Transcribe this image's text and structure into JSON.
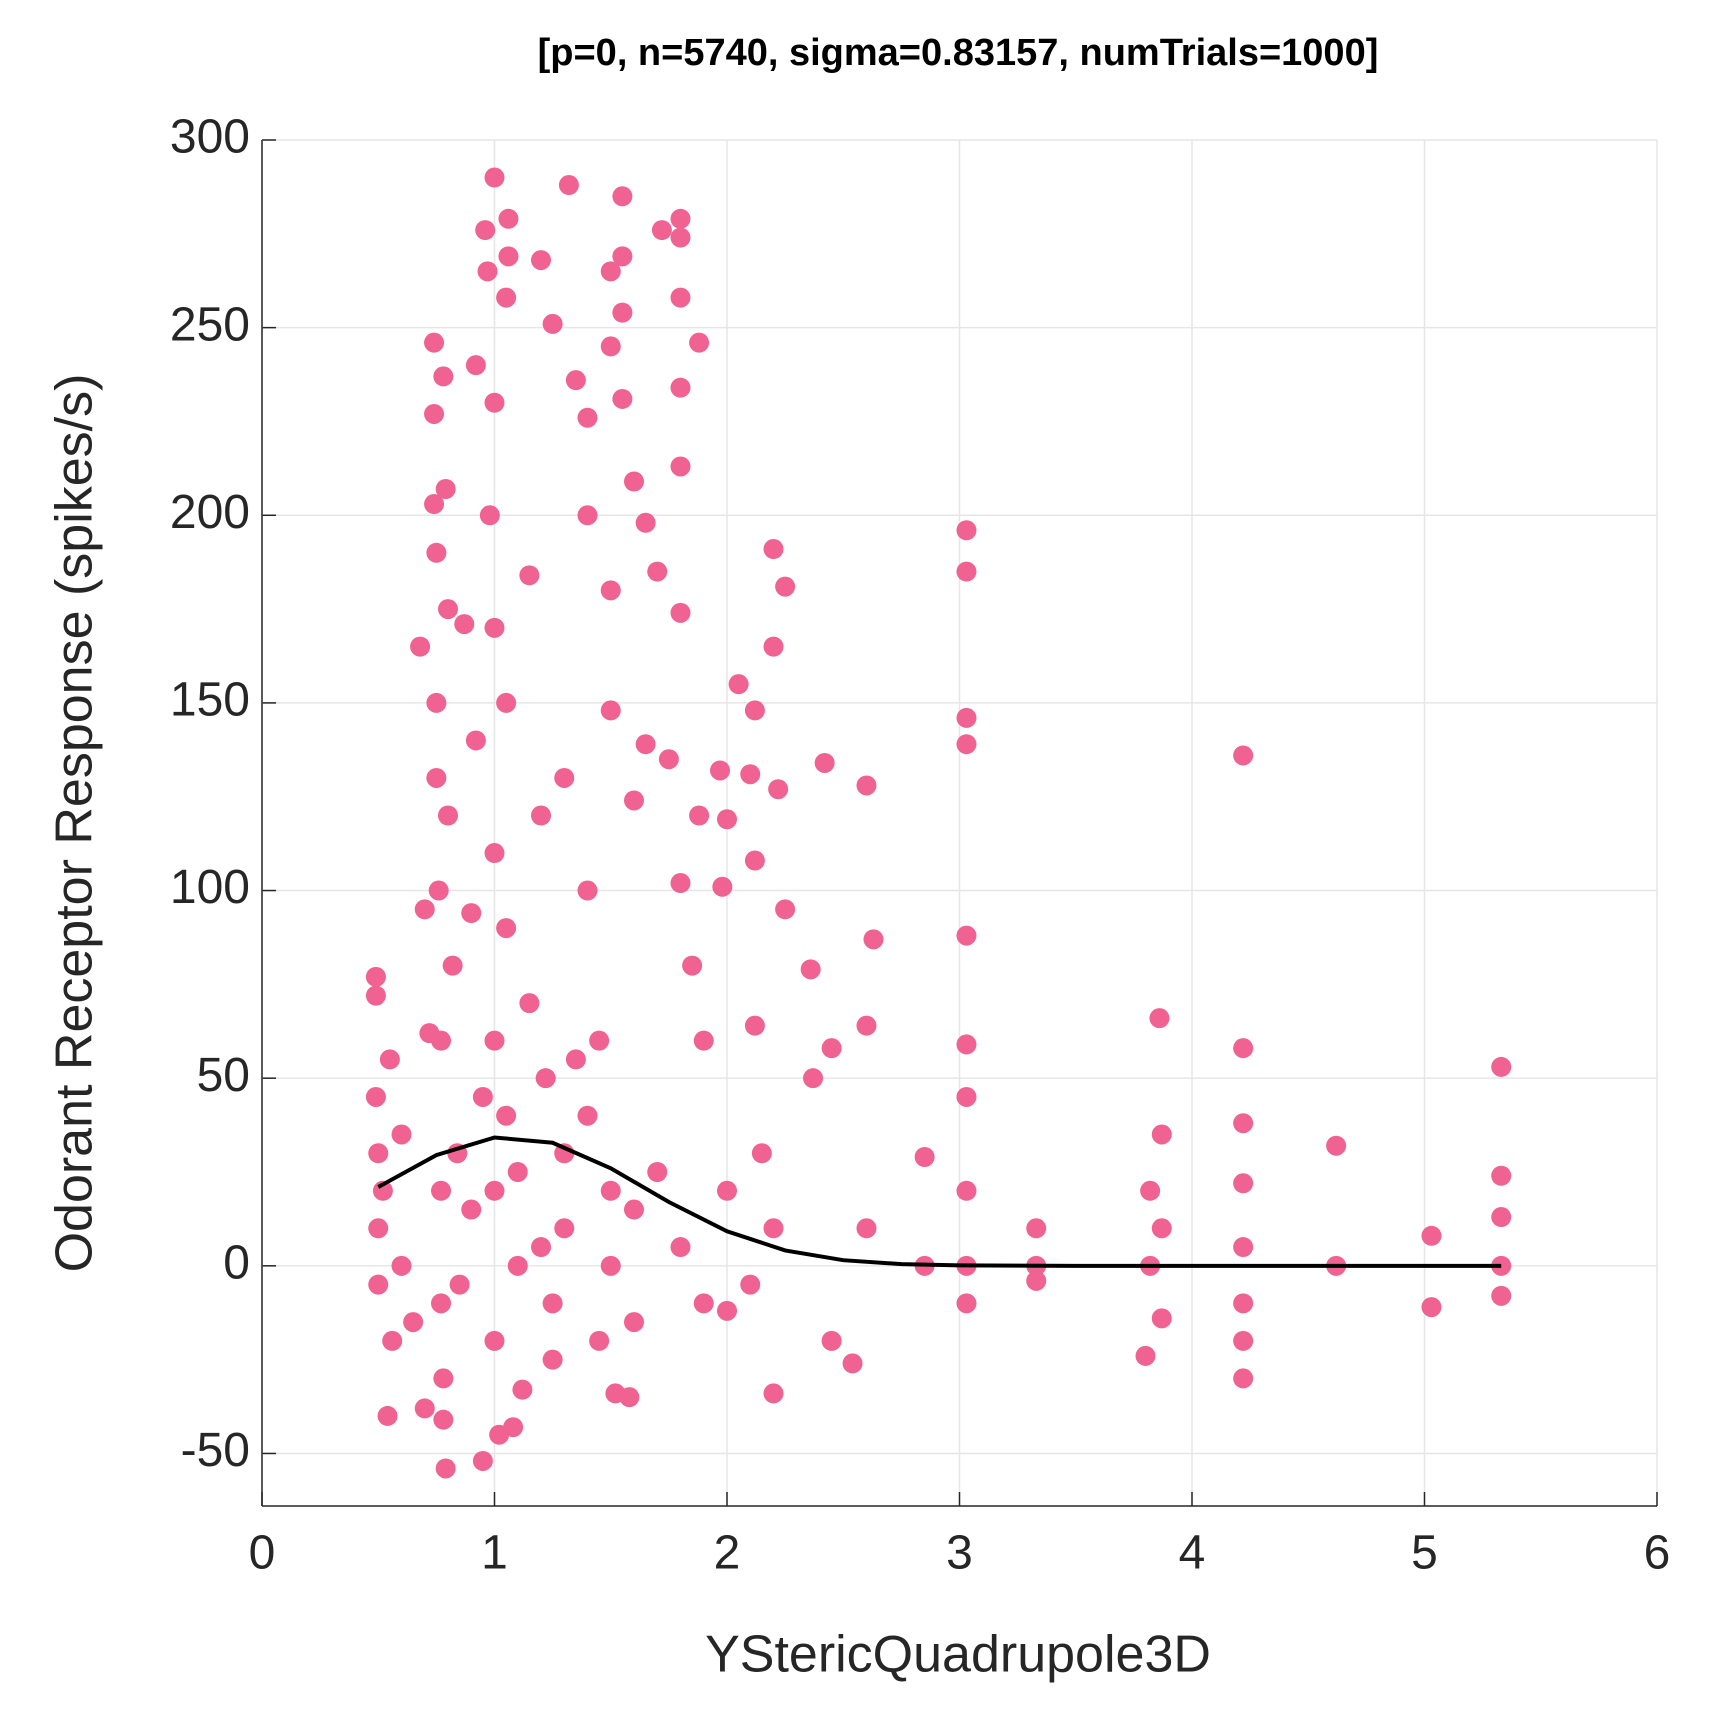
{
  "chart_data": {
    "type": "scatter",
    "title": "[p=0, n=5740, sigma=0.83157, numTrials=1000]",
    "xlabel": "YStericQuadrupole3D",
    "ylabel": "Odorant Receptor Response (spikes/s)",
    "xlim": [
      0,
      6
    ],
    "xticks": [
      0,
      1,
      2,
      3,
      4,
      5,
      6
    ],
    "ylim": [
      -64,
      300
    ],
    "yticks": [
      -50,
      0,
      50,
      100,
      150,
      200,
      250,
      300
    ],
    "grid": true,
    "series": [
      {
        "type": "scatter",
        "color": "#f06292",
        "x": [
          0.49,
          0.49,
          0.49,
          0.5,
          0.5,
          0.5,
          0.52,
          0.55,
          0.54,
          0.56,
          0.6,
          0.6,
          0.65,
          0.68,
          0.7,
          0.7,
          0.72,
          0.74,
          0.74,
          0.74,
          0.75,
          0.75,
          0.75,
          0.76,
          0.77,
          0.77,
          0.77,
          0.78,
          0.78,
          0.79,
          0.78,
          0.79,
          0.8,
          0.8,
          0.82,
          0.84,
          0.85,
          0.87,
          0.9,
          0.92,
          0.92,
          0.95,
          0.96,
          0.97,
          0.98,
          1.0,
          1.0,
          1.0,
          1.0,
          1.0,
          1.0,
          1.0,
          1.02,
          1.05,
          1.06,
          1.06,
          1.05,
          1.05,
          1.05,
          1.08,
          1.1,
          1.12,
          1.15,
          1.2,
          1.2,
          1.22,
          1.25,
          1.25,
          1.3,
          1.3,
          1.32,
          1.35,
          1.4,
          1.4,
          1.4,
          1.45,
          1.45,
          1.5,
          1.5,
          1.5,
          1.5,
          1.5,
          1.52,
          1.55,
          1.55,
          1.55,
          1.55,
          1.58,
          1.6,
          1.6,
          1.65,
          1.65,
          1.7,
          1.72,
          1.75,
          1.8,
          1.8,
          1.8,
          1.8,
          1.8,
          1.8,
          1.8,
          1.85,
          1.88,
          1.88,
          1.9,
          1.97,
          1.98,
          2.0,
          2.05,
          2.1,
          2.12,
          2.12,
          2.12,
          2.15,
          2.2,
          2.2,
          2.22,
          2.2,
          2.25,
          2.25,
          2.36,
          2.37,
          2.42,
          2.45,
          2.45,
          2.54,
          2.6,
          2.6,
          2.63,
          2.6,
          2.85,
          2.85,
          3.03,
          3.03,
          3.03,
          3.03,
          3.03,
          3.03,
          3.03,
          3.03,
          3.03,
          3.03,
          3.33,
          3.33,
          3.33,
          3.8,
          3.82,
          3.82,
          3.86,
          3.87,
          3.87,
          3.87,
          4.22,
          4.22,
          4.22,
          4.22,
          4.22,
          4.22,
          4.22,
          4.22,
          4.62,
          4.62,
          5.03,
          5.03,
          5.33,
          5.33,
          5.33,
          5.33,
          5.33,
          0.9,
          1.1,
          1.2,
          1.3,
          1.4,
          1.5,
          1.6,
          1.7,
          1.8,
          1.9,
          2.0,
          2.1,
          2.2,
          1.25,
          0.95,
          1.15,
          1.35,
          1.6,
          2.0
        ],
        "values": [
          77,
          72,
          45,
          30,
          10,
          -5,
          20,
          55,
          -40,
          -20,
          35,
          0,
          -15,
          165,
          95,
          -38,
          62,
          246,
          227,
          203,
          190,
          150,
          130,
          100,
          60,
          20,
          -10,
          -30,
          -41,
          -54,
          237,
          207,
          175,
          120,
          80,
          30,
          -5,
          171,
          94,
          240,
          140,
          -52,
          276,
          265,
          200,
          290,
          230,
          170,
          110,
          60,
          20,
          -20,
          -45,
          258,
          279,
          269,
          150,
          90,
          40,
          -43,
          0,
          -33,
          184,
          268,
          120,
          50,
          251,
          -25,
          130,
          10,
          288,
          236,
          226,
          200,
          100,
          60,
          -20,
          265,
          245,
          180,
          148,
          20,
          -34,
          285,
          269,
          254,
          231,
          -35,
          209,
          124,
          198,
          139,
          185,
          276,
          135,
          279,
          274,
          258,
          234,
          213,
          174,
          102,
          80,
          246,
          120,
          60,
          132,
          101,
          119,
          155,
          131,
          148,
          108,
          64,
          30,
          191,
          165,
          127,
          -34,
          181,
          95,
          79,
          50,
          134,
          58,
          -20,
          -26,
          128,
          64,
          87,
          10,
          29,
          0,
          196,
          185,
          146,
          139,
          88,
          59,
          45,
          20,
          0,
          -10,
          10,
          0,
          -4,
          -24,
          20,
          0,
          66,
          35,
          10,
          -14,
          136,
          58,
          38,
          22,
          5,
          -10,
          -20,
          -30,
          32,
          0,
          8,
          -11,
          53,
          24,
          13,
          0,
          -8,
          15,
          25,
          5,
          30,
          40,
          0,
          15,
          25,
          5,
          -10,
          20,
          -5,
          10,
          -10,
          45,
          70,
          55,
          -15,
          -12
        ]
      },
      {
        "type": "line",
        "color": "#000000",
        "x": [
          0.5,
          0.75,
          1,
          1.25,
          1.5,
          1.75,
          2,
          2.25,
          2.5,
          2.75,
          3,
          3.5,
          4,
          4.5,
          5,
          5.33
        ],
        "values": [
          21.0,
          29.5,
          34.2,
          32.8,
          26.0,
          17.0,
          9.2,
          4.1,
          1.5,
          0.46,
          0.12,
          0,
          0,
          0,
          0,
          0
        ]
      }
    ]
  }
}
